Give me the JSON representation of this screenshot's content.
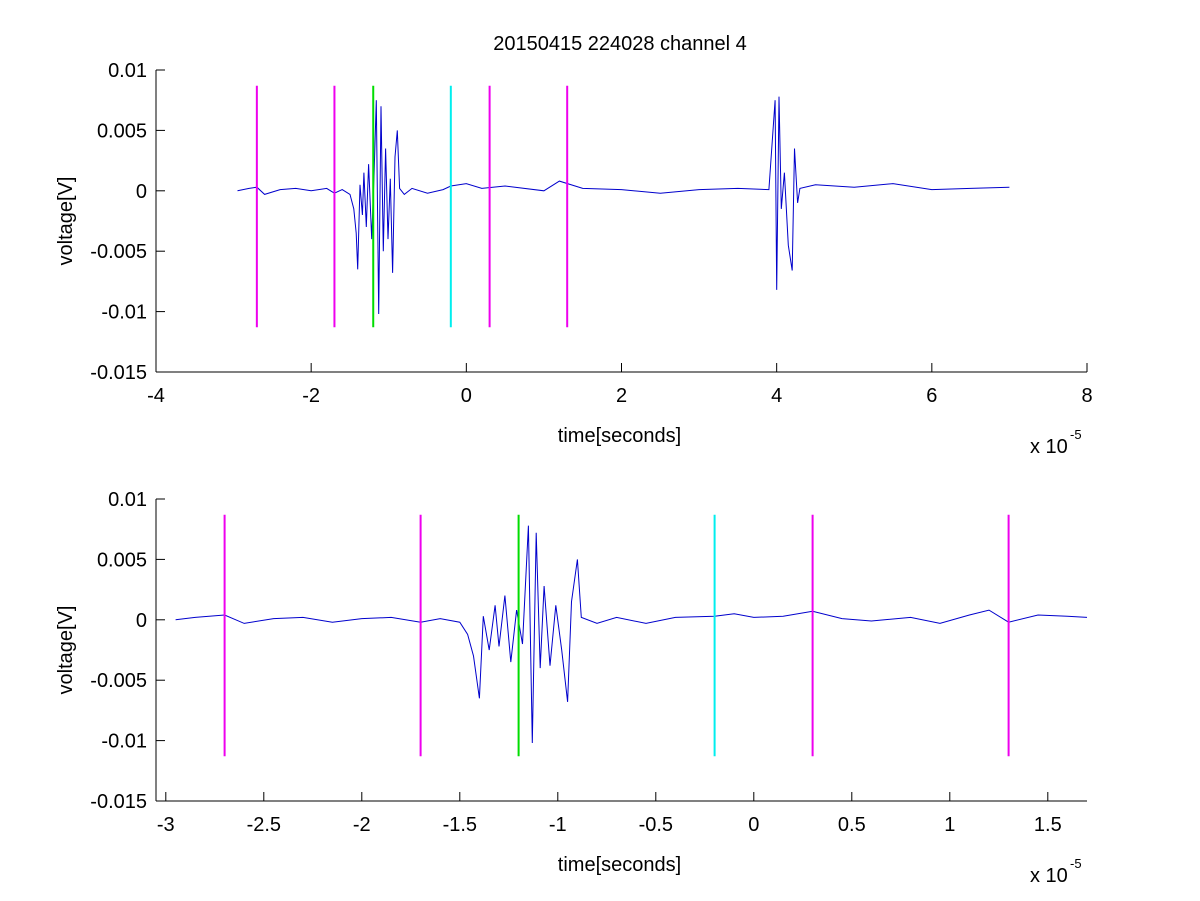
{
  "figure": {
    "title": "20150415 224028 channel 4"
  },
  "chart_data": [
    {
      "type": "line",
      "title": "20150415 224028 channel 4",
      "xlabel": "time[seconds]",
      "ylabel": "voltage[V]",
      "x_multiplier_label": "x 10",
      "x_multiplier_exponent": "-5",
      "xlim": [
        -4e-05,
        8e-05
      ],
      "ylim": [
        -0.015,
        0.01
      ],
      "xticks": [
        -4,
        -2,
        0,
        2,
        4,
        6,
        8
      ],
      "yticks": [
        "-0.015",
        "-0.01",
        "-0.005",
        "0",
        "0.005",
        "0.01"
      ],
      "ytick_values": [
        -0.015,
        -0.01,
        -0.005,
        0,
        0.005,
        0.01
      ],
      "grid": false,
      "series": [
        {
          "color": "#0000cc",
          "points": [
            [
              -2.95e-05,
              0.0
            ],
            [
              -2.8e-05,
              0.0002
            ],
            [
              -2.7e-05,
              0.0003
            ],
            [
              -2.6e-05,
              -0.0003
            ],
            [
              -2.4e-05,
              0.0001
            ],
            [
              -2.2e-05,
              0.0002
            ],
            [
              -2e-05,
              0.0
            ],
            [
              -1.8e-05,
              0.0002
            ],
            [
              -1.7e-05,
              -0.0002
            ],
            [
              -1.6e-05,
              0.0001
            ],
            [
              -1.5e-05,
              -0.0003
            ],
            [
              -1.45e-05,
              -0.0015
            ],
            [
              -1.42e-05,
              -0.0035
            ],
            [
              -1.4e-05,
              -0.0065
            ],
            [
              -1.37e-05,
              0.0005
            ],
            [
              -1.34e-05,
              -0.002
            ],
            [
              -1.32e-05,
              0.0015
            ],
            [
              -1.29e-05,
              -0.003
            ],
            [
              -1.26e-05,
              0.0022
            ],
            [
              -1.22e-05,
              -0.004
            ],
            [
              -1.19e-05,
              0.0012
            ],
            [
              -1.16e-05,
              0.0075
            ],
            [
              -1.13e-05,
              -0.0102
            ],
            [
              -1.1e-05,
              0.007
            ],
            [
              -1.07e-05,
              -0.005
            ],
            [
              -1.04e-05,
              0.0035
            ],
            [
              -1.01e-05,
              -0.004
            ],
            [
              -9.8e-06,
              0.001
            ],
            [
              -9.5e-06,
              -0.0068
            ],
            [
              -9.2e-06,
              0.0028
            ],
            [
              -8.9e-06,
              0.005
            ],
            [
              -8.6e-06,
              0.0002
            ],
            [
              -8e-06,
              -0.0003
            ],
            [
              -7e-06,
              0.0002
            ],
            [
              -5e-06,
              -0.0002
            ],
            [
              -3e-06,
              0.0001
            ],
            [
              -2e-06,
              0.0004
            ],
            [
              0.0,
              0.0006
            ],
            [
              2e-06,
              0.0002
            ],
            [
              5e-06,
              0.0004
            ],
            [
              1e-05,
              0.0
            ],
            [
              1.2e-05,
              0.0008
            ],
            [
              1.5e-05,
              0.0002
            ],
            [
              2e-05,
              0.0001
            ],
            [
              2.5e-05,
              -0.0002
            ],
            [
              3e-05,
              0.0001
            ],
            [
              3.5e-05,
              0.0002
            ],
            [
              3.9e-05,
              0.0001
            ],
            [
              3.98e-05,
              0.0075
            ],
            [
              4e-05,
              -0.0082
            ],
            [
              4.03e-05,
              0.0078
            ],
            [
              4.06e-05,
              -0.0015
            ],
            [
              4.1e-05,
              0.0015
            ],
            [
              4.15e-05,
              -0.0045
            ],
            [
              4.2e-05,
              -0.0066
            ],
            [
              4.23e-05,
              0.0035
            ],
            [
              4.27e-05,
              -0.001
            ],
            [
              4.3e-05,
              0.0002
            ],
            [
              4.5e-05,
              0.0005
            ],
            [
              5e-05,
              0.0003
            ],
            [
              5.5e-05,
              0.0006
            ],
            [
              6e-05,
              0.0001
            ],
            [
              6.5e-05,
              0.0002
            ],
            [
              7e-05,
              0.0003
            ]
          ]
        }
      ],
      "vlines": [
        {
          "x": -2.7e-05,
          "color": "#ee00ee"
        },
        {
          "x": -1.7e-05,
          "color": "#ee00ee"
        },
        {
          "x": -1.2e-05,
          "color": "#00dd00"
        },
        {
          "x": -2e-06,
          "color": "#00eeee"
        },
        {
          "x": 3e-06,
          "color": "#ee00ee"
        },
        {
          "x": 1.3e-05,
          "color": "#ee00ee"
        }
      ],
      "vline_range": [
        -0.0113,
        0.0087
      ]
    },
    {
      "type": "line",
      "title": "",
      "xlabel": "time[seconds]",
      "ylabel": "voltage[V]",
      "x_multiplier_label": "x 10",
      "x_multiplier_exponent": "-5",
      "xlim": [
        -3.05e-05,
        1.7e-05
      ],
      "ylim": [
        -0.015,
        0.01
      ],
      "xticks": [
        -3,
        -2.5,
        -2,
        -1.5,
        -1,
        -0.5,
        0,
        0.5,
        1,
        1.5
      ],
      "yticks": [
        "-0.015",
        "-0.01",
        "-0.005",
        "0",
        "0.005",
        "0.01"
      ],
      "ytick_values": [
        -0.015,
        -0.01,
        -0.005,
        0,
        0.005,
        0.01
      ],
      "grid": false,
      "series": [
        {
          "color": "#0000cc",
          "points": [
            [
              -2.95e-05,
              0.0
            ],
            [
              -2.85e-05,
              0.0002
            ],
            [
              -2.7e-05,
              0.0004
            ],
            [
              -2.6e-05,
              -0.0003
            ],
            [
              -2.45e-05,
              0.0001
            ],
            [
              -2.3e-05,
              0.0002
            ],
            [
              -2.15e-05,
              -0.0002
            ],
            [
              -2e-05,
              0.0001
            ],
            [
              -1.85e-05,
              0.0002
            ],
            [
              -1.7e-05,
              -0.0002
            ],
            [
              -1.6e-05,
              0.0001
            ],
            [
              -1.5e-05,
              -0.0002
            ],
            [
              -1.46e-05,
              -0.0012
            ],
            [
              -1.43e-05,
              -0.003
            ],
            [
              -1.4e-05,
              -0.0065
            ],
            [
              -1.38e-05,
              0.0003
            ],
            [
              -1.35e-05,
              -0.0025
            ],
            [
              -1.32e-05,
              0.0012
            ],
            [
              -1.3e-05,
              -0.0022
            ],
            [
              -1.27e-05,
              0.002
            ],
            [
              -1.24e-05,
              -0.0035
            ],
            [
              -1.21e-05,
              0.0008
            ],
            [
              -1.18e-05,
              -0.002
            ],
            [
              -1.15e-05,
              0.0078
            ],
            [
              -1.13e-05,
              -0.0102
            ],
            [
              -1.11e-05,
              0.0072
            ],
            [
              -1.09e-05,
              -0.004
            ],
            [
              -1.07e-05,
              0.0028
            ],
            [
              -1.04e-05,
              -0.0038
            ],
            [
              -1.01e-05,
              0.0012
            ],
            [
              -9.8e-06,
              -0.0025
            ],
            [
              -9.5e-06,
              -0.0068
            ],
            [
              -9.3e-06,
              0.0015
            ],
            [
              -9e-06,
              0.005
            ],
            [
              -8.8e-06,
              0.0002
            ],
            [
              -8e-06,
              -0.0003
            ],
            [
              -7e-06,
              0.0002
            ],
            [
              -5.5e-06,
              -0.0003
            ],
            [
              -4e-06,
              0.0002
            ],
            [
              -2e-06,
              0.0003
            ],
            [
              -1e-06,
              0.0005
            ],
            [
              0.0,
              0.0002
            ],
            [
              1.5e-06,
              0.0003
            ],
            [
              3e-06,
              0.0007
            ],
            [
              4.5e-06,
              0.0001
            ],
            [
              6e-06,
              -0.0001
            ],
            [
              8e-06,
              0.0002
            ],
            [
              9.5e-06,
              -0.0003
            ],
            [
              1.1e-05,
              0.0004
            ],
            [
              1.2e-05,
              0.0008
            ],
            [
              1.3e-05,
              -0.0002
            ],
            [
              1.45e-05,
              0.0004
            ],
            [
              1.6e-05,
              0.0003
            ],
            [
              1.7e-05,
              0.0002
            ]
          ]
        }
      ],
      "vlines": [
        {
          "x": -2.7e-05,
          "color": "#ee00ee"
        },
        {
          "x": -1.7e-05,
          "color": "#ee00ee"
        },
        {
          "x": -1.2e-05,
          "color": "#00dd00"
        },
        {
          "x": -2e-06,
          "color": "#00eeee"
        },
        {
          "x": 3e-06,
          "color": "#ee00ee"
        },
        {
          "x": 1.3e-05,
          "color": "#ee00ee"
        }
      ],
      "vline_range": [
        -0.0113,
        0.0087
      ]
    }
  ]
}
